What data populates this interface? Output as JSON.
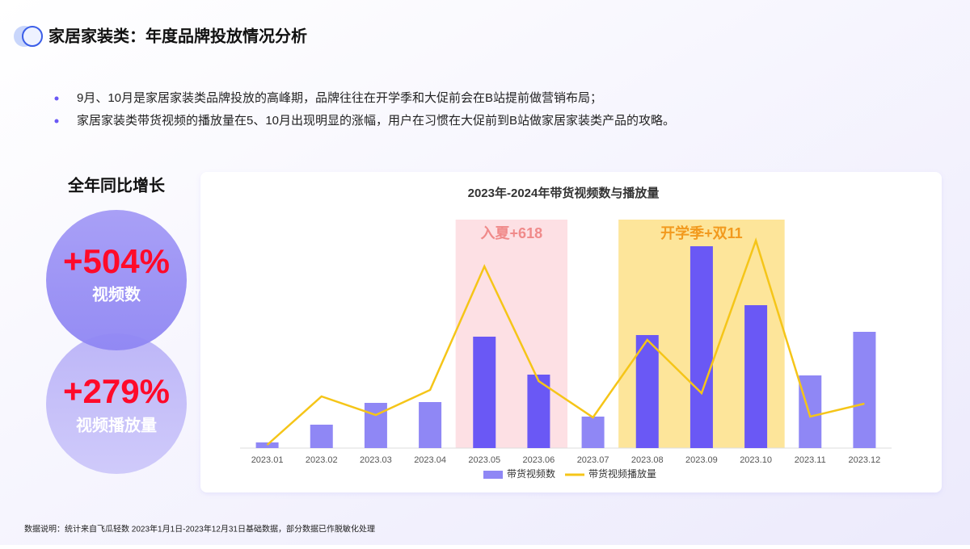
{
  "header": {
    "title": "家居家装类：年度品牌投放情况分析"
  },
  "bullets": [
    "9月、10月是家居家装类品牌投放的高峰期，品牌往往在开学季和大促前会在B站提前做营销布局；",
    "家居家装类带货视频的播放量在5、10月出现明显的涨幅，用户在习惯在大促前到B站做家居家装类产品的攻略。"
  ],
  "stats": {
    "title": "全年同比增长",
    "items": [
      {
        "value": "+504%",
        "label": "视频数"
      },
      {
        "value": "+279%",
        "label": "视频播放量"
      }
    ]
  },
  "chart_data": {
    "type": "bar-line",
    "title": "2023年-2024年带货视频数与播放量",
    "categories": [
      "2023.01",
      "2023.02",
      "2023.03",
      "2023.04",
      "2023.05",
      "2023.06",
      "2023.07",
      "2023.08",
      "2023.09",
      "2023.10",
      "2023.11",
      "2023.12"
    ],
    "series": [
      {
        "name": "带货视频数",
        "type": "bar",
        "color": "#8f87f5",
        "highlight_color": "#6a58f5",
        "values": [
          7,
          29,
          56,
          57,
          138,
          91,
          39,
          140,
          250,
          177,
          90,
          144
        ]
      },
      {
        "name": "带货视频播放量",
        "type": "line",
        "color": "#f5c518",
        "values": [
          4,
          64,
          41,
          72,
          225,
          83,
          38,
          134,
          68,
          257,
          39,
          55
        ]
      }
    ],
    "ylim": [
      0,
      283
    ],
    "highlights": [
      {
        "label": "入夏+618",
        "from": "2023.05",
        "to": "2023.06",
        "color": "#fde0e4",
        "text_color": "#f08a8a"
      },
      {
        "label": "开学季+双11",
        "from": "2023.08",
        "to": "2023.10",
        "color": "#fde59a",
        "text_color": "#f29a1e"
      }
    ],
    "legend": "bottom"
  },
  "footnote": "数据说明：统计来自飞瓜轻数 2023年1月1日-2023年12月31日基础数据，部分数据已作脱敏化处理"
}
